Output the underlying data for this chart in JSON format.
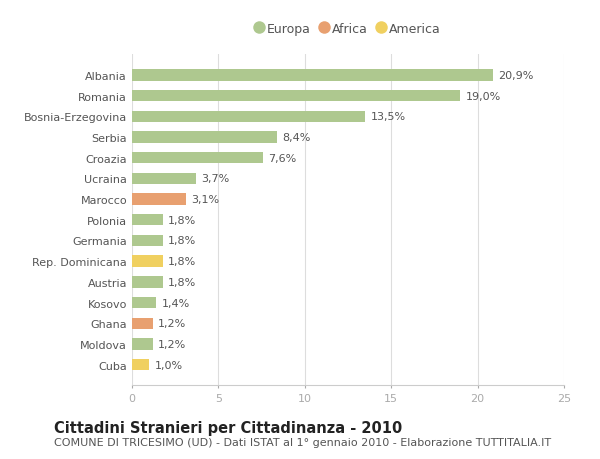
{
  "categories": [
    "Albania",
    "Romania",
    "Bosnia-Erzegovina",
    "Serbia",
    "Croazia",
    "Ucraina",
    "Marocco",
    "Polonia",
    "Germania",
    "Rep. Dominicana",
    "Austria",
    "Kosovo",
    "Ghana",
    "Moldova",
    "Cuba"
  ],
  "values": [
    20.9,
    19.0,
    13.5,
    8.4,
    7.6,
    3.7,
    3.1,
    1.8,
    1.8,
    1.8,
    1.8,
    1.4,
    1.2,
    1.2,
    1.0
  ],
  "labels": [
    "20,9%",
    "19,0%",
    "13,5%",
    "8,4%",
    "7,6%",
    "3,7%",
    "3,1%",
    "1,8%",
    "1,8%",
    "1,8%",
    "1,8%",
    "1,4%",
    "1,2%",
    "1,2%",
    "1,0%"
  ],
  "continents": [
    "Europa",
    "Europa",
    "Europa",
    "Europa",
    "Europa",
    "Europa",
    "Africa",
    "Europa",
    "Europa",
    "America",
    "Europa",
    "Europa",
    "Africa",
    "Europa",
    "America"
  ],
  "continent_colors": {
    "Europa": "#aec88f",
    "Africa": "#e8a070",
    "America": "#f0d060"
  },
  "legend_items": [
    "Europa",
    "Africa",
    "America"
  ],
  "legend_colors": [
    "#aec88f",
    "#e8a070",
    "#f0d060"
  ],
  "title": "Cittadini Stranieri per Cittadinanza - 2010",
  "subtitle": "COMUNE DI TRICESIMO (UD) - Dati ISTAT al 1° gennaio 2010 - Elaborazione TUTTITALIA.IT",
  "xlim": [
    0,
    25
  ],
  "xticks": [
    0,
    5,
    10,
    15,
    20,
    25
  ],
  "background_color": "#ffffff",
  "plot_bg_color": "#ffffff",
  "bar_height": 0.55,
  "label_fontsize": 8.0,
  "tick_fontsize": 8.0,
  "title_fontsize": 10.5,
  "subtitle_fontsize": 8.0
}
